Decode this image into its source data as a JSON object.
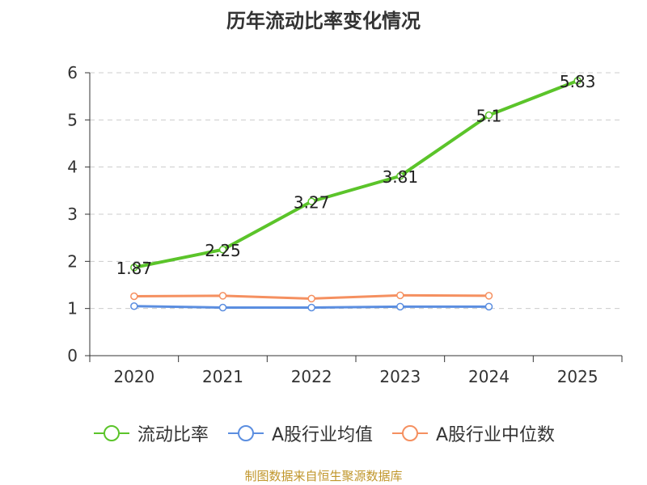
{
  "chart_data": {
    "type": "line",
    "title": "历年流动比率变化情况",
    "categories": [
      "2020",
      "2021",
      "2022",
      "2023",
      "2024",
      "2025"
    ],
    "ylim": [
      0,
      6
    ],
    "yticks": [
      "0",
      "1",
      "2",
      "3",
      "4",
      "5",
      "6"
    ],
    "grid": true,
    "legend_position": "bottom",
    "series": [
      {
        "name": "流动比率",
        "color": "#5bc42a",
        "values": [
          1.87,
          2.25,
          3.27,
          3.81,
          5.1,
          5.83
        ],
        "labels": [
          "1.87",
          "2.25",
          "3.27",
          "3.81",
          "5.1",
          "5.83"
        ]
      },
      {
        "name": "A股行业均值",
        "color": "#5b8ee0",
        "values": [
          1.05,
          1.02,
          1.02,
          1.04,
          1.04,
          null
        ]
      },
      {
        "name": "A股行业中位数",
        "color": "#f59060",
        "values": [
          1.26,
          1.27,
          1.21,
          1.28,
          1.27,
          null
        ]
      }
    ],
    "source": "制图数据来自恒生聚源数据库"
  }
}
